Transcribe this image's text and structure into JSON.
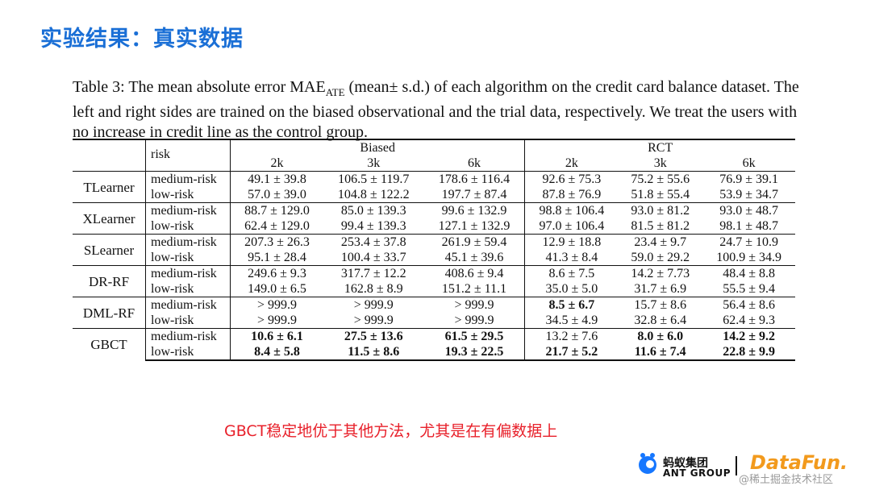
{
  "slide": {
    "title": "实验结果：真实数据",
    "caption_pre": "Table 3:  The mean absolute error ",
    "caption_mae": "MAE",
    "caption_sub": "ATE",
    "caption_post": " (mean± s.d.)  of each algorithm on the credit card balance dataset. The left and right sides are trained on the biased observational and the trial data, respectively. We treat the users with no increase in credit line as the control group.",
    "comment": "GBCT稳定地优于其他方法，尤其是在有偏数据上"
  },
  "table": {
    "risk_header": "risk",
    "group_biased": "Biased",
    "group_rct": "RCT",
    "sizes": [
      "2k",
      "3k",
      "6k",
      "2k",
      "3k",
      "6k"
    ],
    "rows": [
      {
        "algo": "TLearner",
        "medium": [
          "49.1 ± 39.8",
          "106.5 ± 119.7",
          "178.6 ± 116.4",
          "92.6 ± 75.3",
          "75.2 ± 55.6",
          "76.9 ± 39.1"
        ],
        "low": [
          "57.0 ± 39.0",
          "104.8 ± 122.2",
          "197.7 ± 87.4",
          "87.8 ± 76.9",
          "51.8 ± 55.4",
          "53.9 ± 34.7"
        ]
      },
      {
        "algo": "XLearner",
        "medium": [
          "88.7 ± 129.0",
          "85.0 ± 139.3",
          "99.6 ± 132.9",
          "98.8 ± 106.4",
          "93.0 ± 81.2",
          "93.0 ± 48.7"
        ],
        "low": [
          "62.4 ± 129.0",
          "99.4 ± 139.3",
          "127.1 ± 132.9",
          "97.0 ± 106.4",
          "81.5 ± 81.2",
          "98.1 ± 48.7"
        ]
      },
      {
        "algo": "SLearner",
        "medium": [
          "207.3 ± 26.3",
          "253.4 ± 37.8",
          "261.9 ± 59.4",
          "12.9 ± 18.8",
          "23.4 ± 9.7",
          "24.7 ± 10.9"
        ],
        "low": [
          "95.1 ± 28.4",
          "100.4 ± 33.7",
          "45.1 ± 39.6",
          "41.3 ± 8.4",
          "59.0 ± 29.2",
          "100.9 ± 34.9"
        ]
      },
      {
        "algo": "DR-RF",
        "medium": [
          "249.6 ± 9.3",
          "317.7 ± 12.2",
          "408.6 ± 9.4",
          "8.6 ± 7.5",
          "14.2 ± 7.73",
          "48.4 ± 8.8"
        ],
        "low": [
          "149.0 ± 6.5",
          "162.8 ± 8.9",
          "151.2 ± 11.1",
          "35.0 ± 5.0",
          "31.7 ± 6.9",
          "55.5 ± 9.4"
        ]
      },
      {
        "algo": "DML-RF",
        "medium": [
          "> 999.9",
          "> 999.9",
          "> 999.9",
          "8.5 ± 6.7",
          "15.7 ± 8.6",
          "56.4 ± 8.6"
        ],
        "low": [
          "> 999.9",
          "> 999.9",
          "> 999.9",
          "34.5 ± 4.9",
          "32.8 ± 6.4",
          "62.4 ± 9.3"
        ]
      },
      {
        "algo": "GBCT",
        "medium": [
          "10.6 ± 6.1",
          "27.5 ± 13.6",
          "61.5 ± 29.5",
          "13.2 ± 7.6",
          "8.0 ± 6.0",
          "14.2 ± 9.2"
        ],
        "low": [
          "8.4 ± 5.8",
          "11.5 ± 8.6",
          "19.3 ± 22.5",
          "21.7 ± 5.2",
          "11.6 ± 7.4",
          "22.8 ± 9.9"
        ]
      }
    ],
    "risk_medium": "medium-risk",
    "risk_low": "low-risk"
  },
  "logos": {
    "ant_cn": "蚂蚁集团",
    "ant_en": "ANT GROUP",
    "datafun": "DataFun.",
    "watermark": "@稀土掘金技术社区"
  },
  "colors": {
    "title": "#1a6fd6",
    "comment": "#e8202a",
    "datafun": "#f29a1d"
  }
}
